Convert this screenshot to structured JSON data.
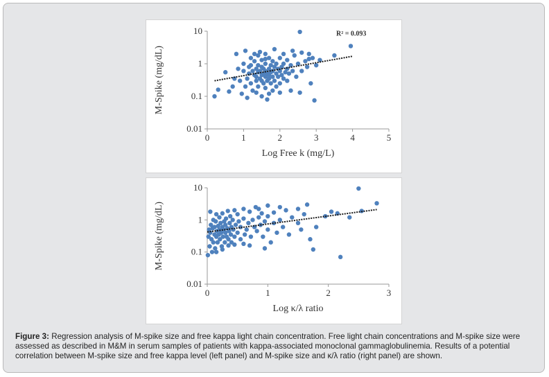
{
  "caption": {
    "label": "Figure 3:",
    "text": " Regression analysis of M-spike size and free kappa light chain concentration. Free light chain concentrations and M-spike size were assessed as described in M&M in serum samples of patients with kappa-associated monoclonal gammaglobulinemia. Results of a potential correlation between M-spike size and free kappa level (left panel) and M-spike size and κ/λ ratio (right panel) are shown."
  },
  "chart_data": [
    {
      "type": "scatter",
      "title": "",
      "xlabel": "Log Free k (mg/L)",
      "ylabel": "M-Spike (mg/dL)",
      "xlim": [
        0,
        5
      ],
      "ylim": [
        0.01,
        10
      ],
      "ylog": true,
      "xticks": [
        "0",
        "1",
        "2",
        "3",
        "4",
        "5"
      ],
      "yticks": [
        "10",
        "1",
        "0.1",
        "0.01"
      ],
      "grid": false,
      "annotation": "R² = 0.093",
      "trendline": {
        "x": [
          0.2,
          4.0
        ],
        "y": [
          0.3,
          1.7
        ]
      },
      "color": "#4f81bd",
      "points": [
        [
          0.2,
          0.1
        ],
        [
          0.3,
          0.16
        ],
        [
          0.5,
          0.55
        ],
        [
          0.6,
          0.14
        ],
        [
          0.7,
          0.2
        ],
        [
          0.75,
          0.35
        ],
        [
          0.8,
          2.0
        ],
        [
          0.85,
          0.7
        ],
        [
          0.9,
          0.3
        ],
        [
          0.95,
          0.12
        ],
        [
          1.0,
          0.6
        ],
        [
          1.0,
          1.0
        ],
        [
          1.05,
          0.2
        ],
        [
          1.05,
          2.5
        ],
        [
          1.1,
          0.09
        ],
        [
          1.1,
          0.35
        ],
        [
          1.15,
          0.5
        ],
        [
          1.15,
          0.8
        ],
        [
          1.2,
          1.5
        ],
        [
          1.2,
          0.25
        ],
        [
          1.25,
          0.6
        ],
        [
          1.25,
          0.15
        ],
        [
          1.3,
          0.45
        ],
        [
          1.3,
          1.2
        ],
        [
          1.3,
          2.0
        ],
        [
          1.35,
          0.3
        ],
        [
          1.35,
          0.7
        ],
        [
          1.35,
          0.4
        ],
        [
          1.4,
          0.55
        ],
        [
          1.4,
          0.9
        ],
        [
          1.4,
          0.2
        ],
        [
          1.4,
          1.8
        ],
        [
          1.45,
          0.35
        ],
        [
          1.45,
          0.6
        ],
        [
          1.45,
          2.3
        ],
        [
          1.5,
          0.1
        ],
        [
          1.5,
          0.45
        ],
        [
          1.5,
          0.8
        ],
        [
          1.5,
          0.3
        ],
        [
          1.5,
          1.3
        ],
        [
          1.55,
          0.5
        ],
        [
          1.55,
          0.25
        ],
        [
          1.55,
          0.7
        ],
        [
          1.6,
          0.4
        ],
        [
          1.6,
          0.6
        ],
        [
          1.6,
          1.0
        ],
        [
          1.6,
          0.18
        ],
        [
          1.6,
          2.0
        ],
        [
          1.65,
          0.3
        ],
        [
          1.65,
          0.5
        ],
        [
          1.65,
          0.08
        ],
        [
          1.7,
          0.45
        ],
        [
          1.7,
          0.7
        ],
        [
          1.7,
          0.35
        ],
        [
          1.7,
          1.5
        ],
        [
          1.75,
          0.25
        ],
        [
          1.75,
          0.55
        ],
        [
          1.75,
          0.9
        ],
        [
          1.8,
          0.4
        ],
        [
          1.8,
          0.6
        ],
        [
          1.8,
          1.2
        ],
        [
          1.8,
          0.15
        ],
        [
          1.85,
          0.3
        ],
        [
          1.85,
          0.8
        ],
        [
          1.85,
          2.8
        ],
        [
          1.9,
          0.5
        ],
        [
          1.9,
          0.2
        ],
        [
          1.9,
          1.0
        ],
        [
          1.95,
          0.4
        ],
        [
          1.95,
          0.7
        ],
        [
          2.0,
          0.6
        ],
        [
          2.0,
          1.5
        ],
        [
          2.0,
          0.25
        ],
        [
          2.05,
          0.45
        ],
        [
          2.05,
          0.8
        ],
        [
          2.1,
          0.35
        ],
        [
          2.1,
          1.0
        ],
        [
          2.1,
          2.0
        ],
        [
          2.15,
          0.55
        ],
        [
          2.2,
          0.3
        ],
        [
          2.2,
          0.7
        ],
        [
          2.2,
          1.3
        ],
        [
          2.25,
          0.5
        ],
        [
          2.3,
          0.9
        ],
        [
          2.3,
          0.15
        ],
        [
          2.35,
          0.6
        ],
        [
          2.4,
          1.8
        ],
        [
          2.45,
          0.4
        ],
        [
          2.5,
          1.0
        ],
        [
          2.55,
          0.13
        ],
        [
          2.6,
          2.2
        ],
        [
          2.6,
          0.6
        ],
        [
          2.7,
          1.2
        ],
        [
          2.75,
          0.8
        ],
        [
          2.8,
          2.0
        ],
        [
          2.85,
          0.25
        ],
        [
          2.9,
          1.5
        ],
        [
          2.95,
          0.075
        ],
        [
          3.0,
          0.9
        ],
        [
          3.1,
          1.3
        ],
        [
          3.5,
          1.8
        ],
        [
          3.95,
          3.5
        ],
        [
          2.55,
          9.5
        ],
        [
          1.35,
          0.13
        ],
        [
          1.7,
          0.12
        ],
        [
          2.0,
          0.13
        ],
        [
          1.2,
          0.9
        ],
        [
          1.6,
          1.4
        ],
        [
          2.35,
          2.5
        ],
        [
          2.8,
          1.4
        ]
      ]
    },
    {
      "type": "scatter",
      "title": "",
      "xlabel": "Log κ/λ ratio",
      "ylabel": "M-Spike (mg/dL)",
      "xlim": [
        0,
        3
      ],
      "ylim": [
        0.01,
        10
      ],
      "ylog": true,
      "xticks": [
        "0",
        "1",
        "2",
        "3"
      ],
      "yticks": [
        "10",
        "1",
        "0.1",
        "0.01"
      ],
      "grid": false,
      "trendline": {
        "x": [
          0.0,
          2.8
        ],
        "y": [
          0.42,
          2.1
        ]
      },
      "color": "#4f81bd",
      "points": [
        [
          0.01,
          0.08
        ],
        [
          0.02,
          0.3
        ],
        [
          0.03,
          0.5
        ],
        [
          0.04,
          0.15
        ],
        [
          0.05,
          1.8
        ],
        [
          0.05,
          0.4
        ],
        [
          0.06,
          0.7
        ],
        [
          0.07,
          0.25
        ],
        [
          0.08,
          0.1
        ],
        [
          0.09,
          0.55
        ],
        [
          0.1,
          1.0
        ],
        [
          0.1,
          0.2
        ],
        [
          0.12,
          0.35
        ],
        [
          0.12,
          0.6
        ],
        [
          0.13,
          0.13
        ],
        [
          0.14,
          0.9
        ],
        [
          0.15,
          0.3
        ],
        [
          0.15,
          1.5
        ],
        [
          0.16,
          0.45
        ],
        [
          0.17,
          0.2
        ],
        [
          0.18,
          0.65
        ],
        [
          0.19,
          0.35
        ],
        [
          0.2,
          0.5
        ],
        [
          0.2,
          1.2
        ],
        [
          0.21,
          0.25
        ],
        [
          0.22,
          0.8
        ],
        [
          0.23,
          0.4
        ],
        [
          0.24,
          0.15
        ],
        [
          0.25,
          0.6
        ],
        [
          0.25,
          1.6
        ],
        [
          0.26,
          0.3
        ],
        [
          0.27,
          0.5
        ],
        [
          0.28,
          0.9
        ],
        [
          0.29,
          0.2
        ],
        [
          0.3,
          0.4
        ],
        [
          0.3,
          0.7
        ],
        [
          0.31,
          1.1
        ],
        [
          0.32,
          0.3
        ],
        [
          0.33,
          0.55
        ],
        [
          0.34,
          1.9
        ],
        [
          0.35,
          0.25
        ],
        [
          0.36,
          0.45
        ],
        [
          0.37,
          0.8
        ],
        [
          0.38,
          1.3
        ],
        [
          0.39,
          0.35
        ],
        [
          0.4,
          0.6
        ],
        [
          0.4,
          0.2
        ],
        [
          0.42,
          1.0
        ],
        [
          0.43,
          0.5
        ],
        [
          0.45,
          2.0
        ],
        [
          0.45,
          0.3
        ],
        [
          0.47,
          0.7
        ],
        [
          0.5,
          0.4
        ],
        [
          0.5,
          1.5
        ],
        [
          0.52,
          0.9
        ],
        [
          0.55,
          0.25
        ],
        [
          0.55,
          0.6
        ],
        [
          0.6,
          2.2
        ],
        [
          0.6,
          1.1
        ],
        [
          0.62,
          0.35
        ],
        [
          0.65,
          0.5
        ],
        [
          0.68,
          0.8
        ],
        [
          0.7,
          1.8
        ],
        [
          0.72,
          0.3
        ],
        [
          0.75,
          1.0
        ],
        [
          0.78,
          0.6
        ],
        [
          0.8,
          2.5
        ],
        [
          0.82,
          0.45
        ],
        [
          0.85,
          1.2
        ],
        [
          0.88,
          0.7
        ],
        [
          0.9,
          1.6
        ],
        [
          0.92,
          0.3
        ],
        [
          0.95,
          0.9
        ],
        [
          1.0,
          0.5
        ],
        [
          1.0,
          1.3
        ],
        [
          1.05,
          0.2
        ],
        [
          1.1,
          0.8
        ],
        [
          1.1,
          1.7
        ],
        [
          1.15,
          0.4
        ],
        [
          1.2,
          1.0
        ],
        [
          1.25,
          0.6
        ],
        [
          1.3,
          2.0
        ],
        [
          1.35,
          0.35
        ],
        [
          1.4,
          1.2
        ],
        [
          1.5,
          0.8
        ],
        [
          1.5,
          2.2
        ],
        [
          1.55,
          0.5
        ],
        [
          1.6,
          1.5
        ],
        [
          1.65,
          3.0
        ],
        [
          1.7,
          0.25
        ],
        [
          1.75,
          0.12
        ],
        [
          1.8,
          0.6
        ],
        [
          1.95,
          1.3
        ],
        [
          2.05,
          1.8
        ],
        [
          2.15,
          1.6
        ],
        [
          2.2,
          0.07
        ],
        [
          2.35,
          1.2
        ],
        [
          2.5,
          9.5
        ],
        [
          2.55,
          1.9
        ],
        [
          2.8,
          3.3
        ],
        [
          0.25,
          0.12
        ],
        [
          0.45,
          0.17
        ],
        [
          0.7,
          0.16
        ],
        [
          0.95,
          0.13
        ],
        [
          0.6,
          0.18
        ],
        [
          0.35,
          0.16
        ],
        [
          0.15,
          0.1
        ],
        [
          1.2,
          2.5
        ],
        [
          1.0,
          2.8
        ],
        [
          0.85,
          2.2
        ]
      ]
    }
  ]
}
